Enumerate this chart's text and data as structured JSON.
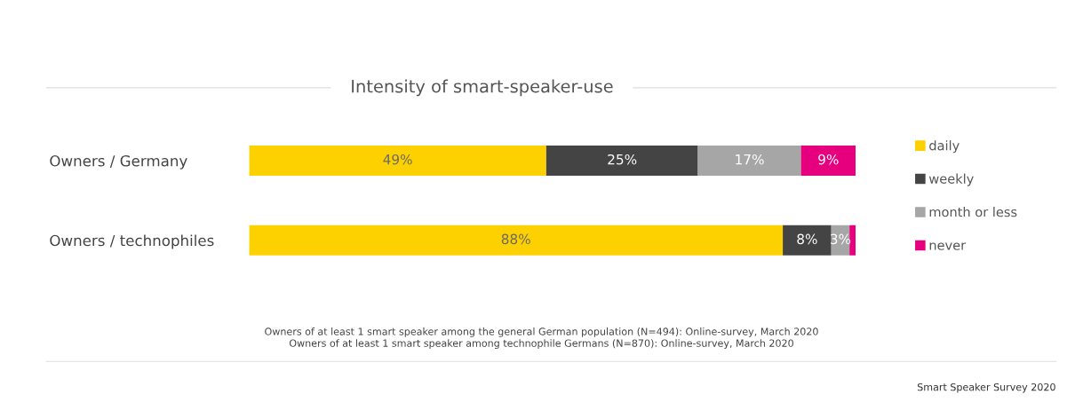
{
  "chart_data": {
    "type": "bar",
    "orientation": "horizontal",
    "stacked": true,
    "title": "Intensity of smart-speaker-use",
    "categories": [
      "Owners / Germany",
      "Owners / technophiles"
    ],
    "series": [
      {
        "name": "daily",
        "color": "#fdd000",
        "values": [
          49,
          88
        ],
        "value_labels": [
          "49%",
          "88%"
        ]
      },
      {
        "name": "weekly",
        "color": "#444444",
        "values": [
          25,
          8
        ],
        "value_labels": [
          "25%",
          "8%"
        ]
      },
      {
        "name": "month or less",
        "color": "#a6a6a6",
        "values": [
          17,
          3
        ],
        "value_labels": [
          "17%",
          "3%"
        ]
      },
      {
        "name": "never",
        "color": "#e6007e",
        "values": [
          9,
          1
        ],
        "value_labels": [
          "9%",
          null
        ]
      }
    ],
    "legend": "right",
    "grid": false,
    "tick_labels": "y",
    "annotations": [
      "Owners of at least 1 smart speaker among the general German population (N=494): Online-survey, March 2020",
      "Owners of at least 1 smart speaker among technophile Germans (N=870): Online-survey, March 2020",
      "Smart Speaker Survey 2020"
    ]
  }
}
